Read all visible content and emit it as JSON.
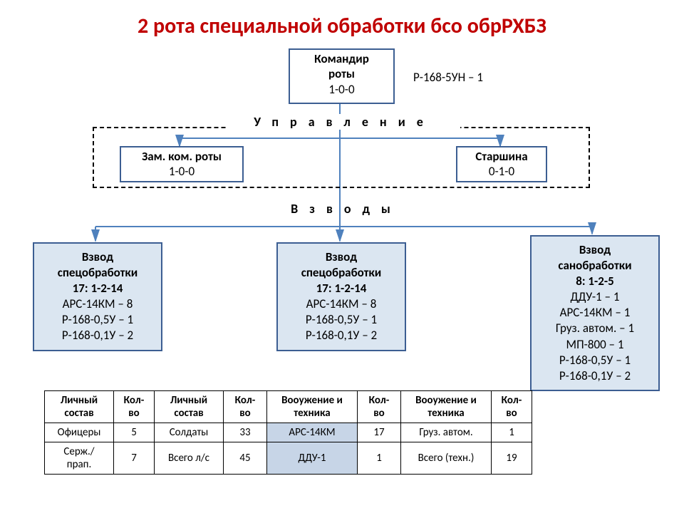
{
  "title": "2 рота специальной обработки бсо обрРХБЗ",
  "title_color": "#c00000",
  "commander": {
    "line1": "Командир",
    "line2": "роты",
    "line3": "1-0-0"
  },
  "side_note": "Р-168-5УН – 1",
  "management_label": "Управление",
  "deputy": {
    "line1": "Зам. ком. роты",
    "line2": "1-0-0"
  },
  "sergeant": {
    "line1": "Старшина",
    "line2": "0-1-0"
  },
  "platoons_label": "Взводы",
  "platoon1": {
    "l1": "Взвод",
    "l2": "спецобработки",
    "l3": "17: 1-2-14",
    "l4": "АРС-14КМ – 8",
    "l5": "Р-168-0,5У – 1",
    "l6": "Р-168-0,1У – 2"
  },
  "platoon2": {
    "l1": "Взвод",
    "l2": "спецобработки",
    "l3": "17: 1-2-14",
    "l4": "АРС-14КМ – 8",
    "l5": "Р-168-0,5У – 1",
    "l6": "Р-168-0,1У – 2"
  },
  "platoon3": {
    "l1": "Взвод",
    "l2": "санобработки",
    "l3": "8: 1-2-5",
    "l4": "ДДУ-1 – 1",
    "l5": "АРС-14КМ – 1",
    "l6": "Груз. автом. – 1",
    "l7": "МП-800 – 1",
    "l8": "Р-168-0,5У – 1",
    "l9": "Р-168-0,1У – 2"
  },
  "table": {
    "headers": [
      "Личный состав",
      "Кол-во",
      "Личный состав",
      "Кол-во",
      "Вооужение и техника",
      "Кол-во",
      "Вооужение и техника",
      "Кол-во"
    ],
    "rows": [
      [
        "Офицеры",
        "5",
        "Солдаты",
        "33",
        "АРС-14КМ",
        "17",
        "Груз. автом.",
        "1"
      ],
      [
        "Серж./ прап.",
        "7",
        "Всего л/с",
        "45",
        "ДДУ-1",
        "1",
        "Всего (техн.)",
        "19"
      ]
    ],
    "highlight_cols": [
      4
    ]
  },
  "style": {
    "border_color": "#3c5e92",
    "platoon_fill": "#dbe6f1",
    "connector_color": "#4f81bd",
    "arrow_color": "#4f81bd"
  }
}
